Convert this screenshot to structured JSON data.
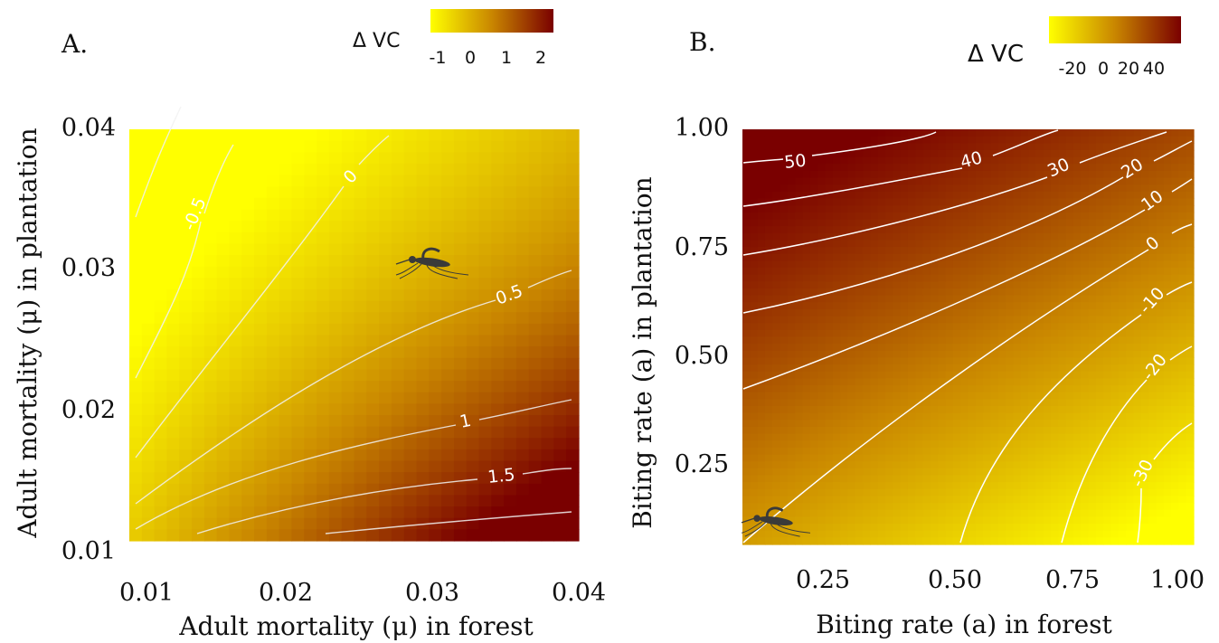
{
  "colors": {
    "low": "#ffff00",
    "mid": "#c98600",
    "high": "#7a0000",
    "contour": "#ffffff"
  },
  "chart_data": [
    {
      "panel_label": "A.",
      "type": "heatmap",
      "xlabel": "Adult mortality (μ) in forest",
      "ylabel": "Adult mortality (μ) in plantation",
      "xlim": [
        0.01,
        0.04
      ],
      "ylim": [
        0.01,
        0.04
      ],
      "x_ticks": [
        "0.01",
        "0.02",
        "0.03",
        "0.04"
      ],
      "y_ticks": [
        "0.01",
        "0.02",
        "0.03",
        "0.04"
      ],
      "legend": {
        "title": "Δ VC",
        "ticks": [
          "-1",
          "0",
          "1",
          "2"
        ],
        "range": [
          -1.3,
          2.3
        ]
      },
      "contour_labels": [
        "-0.5",
        "0",
        "0.5",
        "1",
        "1.5"
      ],
      "contour_levels": [
        -0.5,
        0,
        0.5,
        1,
        1.5,
        2
      ],
      "mosquito_icon": "mosquito-icon"
    },
    {
      "panel_label": "B.",
      "type": "heatmap",
      "xlabel": "Biting rate (a) in forest",
      "ylabel": "Biting rate (a) in plantation",
      "xlim": [
        0.1,
        1.0
      ],
      "ylim": [
        0.05,
        1.0
      ],
      "x_ticks": [
        "0.25",
        "0.50",
        "0.75",
        "1.00"
      ],
      "y_ticks": [
        "0.25",
        "0.50",
        "0.75",
        "1.00"
      ],
      "legend": {
        "title": "Δ VC",
        "ticks": [
          "-20",
          "0",
          "20",
          "40"
        ],
        "range": [
          -35,
          55
        ]
      },
      "contour_labels": [
        "50",
        "40",
        "30",
        "20",
        "10",
        "0",
        "-10",
        "-20",
        "-30"
      ],
      "contour_levels": [
        50,
        40,
        30,
        20,
        10,
        0,
        -10,
        -20,
        -30
      ],
      "mosquito_icon": "mosquito-icon"
    }
  ]
}
